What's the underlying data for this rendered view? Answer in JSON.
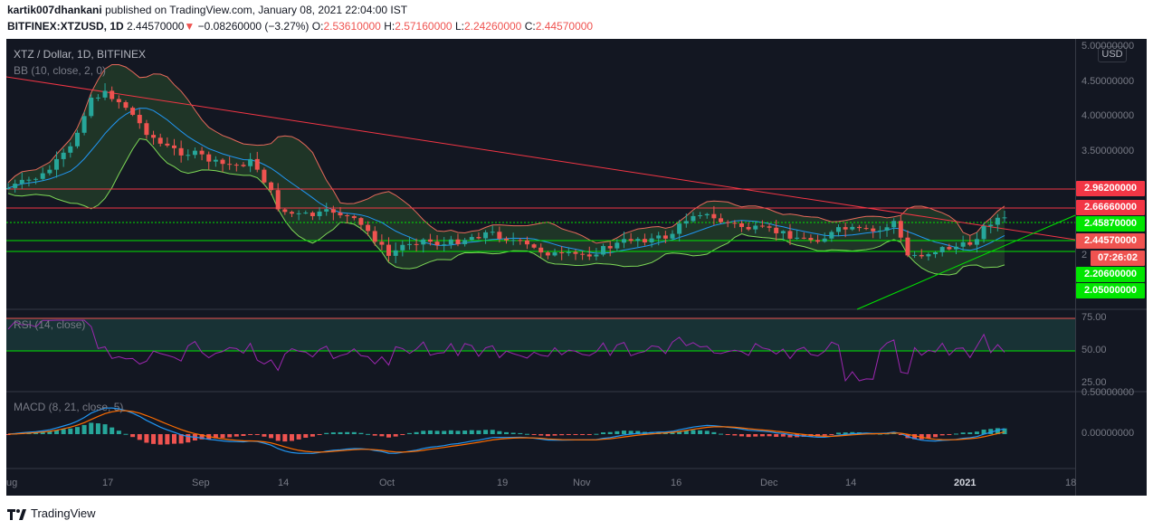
{
  "header": {
    "author": "kartik007dhankani",
    "published_text": "published on TradingView.com, January 08, 2021 22:04:00 IST",
    "symbol": "BITFINEX:XTZUSD, 1D",
    "last": "2.44570000",
    "arrow": "▼",
    "change": "−0.08260000 (−3.27%)",
    "o_label": "O:",
    "o_value": "2.53610000",
    "h_label": "H:",
    "h_value": "2.57160000",
    "l_label": "L:",
    "l_value": "2.24260000",
    "c_label": "C:",
    "c_value": "2.44570000"
  },
  "pane_titles": {
    "main": "XTZ / Dollar, 1D, BITFINEX",
    "bb": "BB (10, close, 2, 0)",
    "rsi": "RSI (14, close)",
    "macd": "MACD (8, 21, close, 5)"
  },
  "currency": "USD",
  "price_axis": [
    "5.00000000",
    "4.50000000",
    "4.00000000",
    "3.50000000",
    "2"
  ],
  "price_labels": [
    {
      "text": "2.96200000",
      "color": "#f23645"
    },
    {
      "text": "2.66660000",
      "color": "#f23645"
    },
    {
      "text": "2.45870000",
      "color": "#00e600"
    },
    {
      "text": "2.44570000",
      "color": "#ef5350"
    },
    {
      "text": "07:26:02",
      "color": "#ef5350"
    },
    {
      "text": "2.20600000",
      "color": "#00e600"
    },
    {
      "text": "2.05000000",
      "color": "#00e600"
    }
  ],
  "rsi_axis": [
    "75.00",
    "50.00",
    "25.00"
  ],
  "macd_axis": [
    "0.50000000",
    "0.00000000"
  ],
  "time_axis": [
    "ug",
    "17",
    "Sep",
    "14",
    "Oct",
    "19",
    "Nov",
    "16",
    "Dec",
    "14",
    "2021",
    "18"
  ],
  "footer": {
    "brand": "TradingView"
  },
  "colors": {
    "background": "#131722",
    "bull": "#26a69a",
    "bear": "#ef5350",
    "resistance": "#f23645",
    "support": "#00e600",
    "bb_upper": "#e6695b",
    "bb_lower": "#7ed957",
    "bb_basis": "#2196f3",
    "rsi_line": "#9c27b0",
    "macd_line": "#2196f3",
    "signal_line": "#ff6d00"
  }
}
